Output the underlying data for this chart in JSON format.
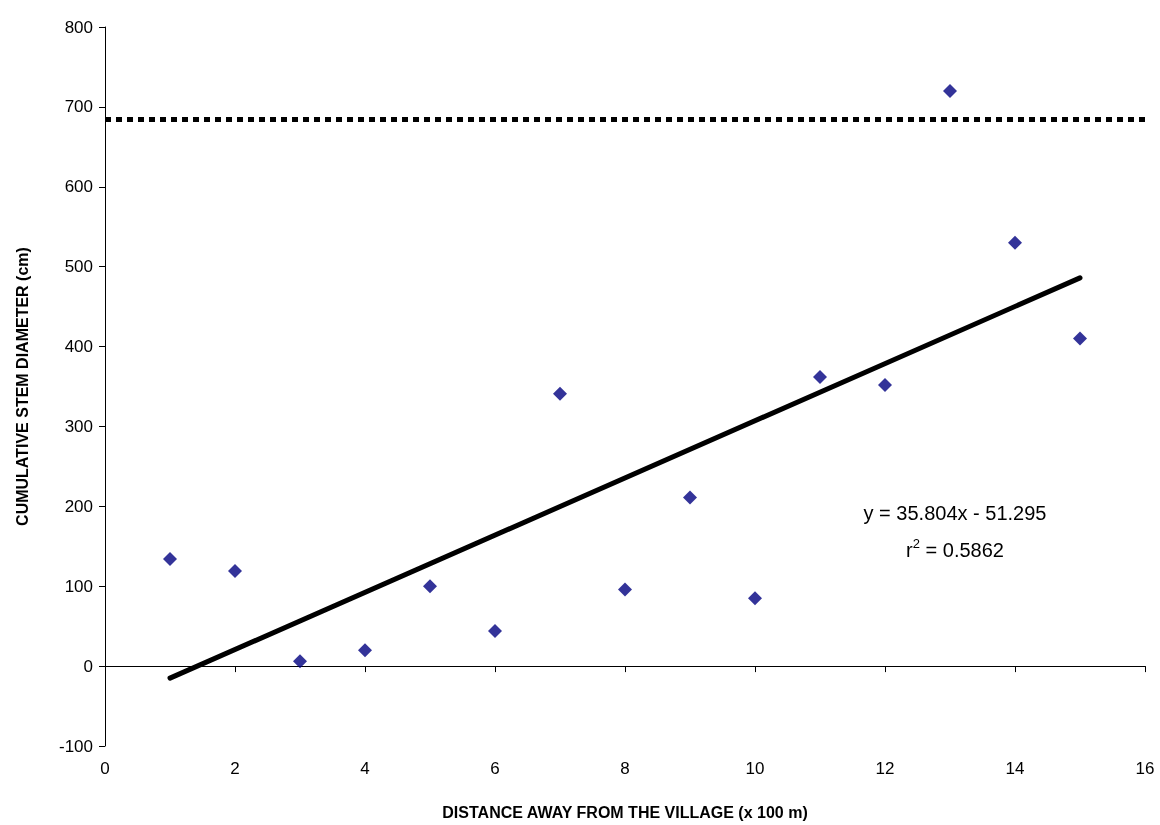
{
  "chart_data": {
    "type": "scatter",
    "xlabel": "DISTANCE AWAY FROM THE VILLAGE (x 100 m)",
    "ylabel": "CUMULATIVE STEM DIAMETER (cm)",
    "x": [
      1,
      2,
      3,
      4,
      5,
      6,
      7,
      8,
      9,
      10,
      11,
      12,
      13,
      14,
      15
    ],
    "series": [
      {
        "color": "#000080",
        "marker": "diamond",
        "values": [
          134,
          119,
          6,
          20,
          100,
          44,
          341,
          96,
          211,
          85,
          362,
          352,
          720,
          530,
          410
        ]
      },
      {
        "type": "line",
        "color": "#000000",
        "marker": "none",
        "line_style": "solid",
        "x": [
          1,
          15
        ],
        "values": [
          -15,
          486
        ]
      }
    ],
    "xlim": [
      0,
      16
    ],
    "xticks": [
      0,
      2,
      4,
      6,
      8,
      10,
      12,
      14,
      16
    ],
    "ylim": [
      -100,
      800
    ],
    "yticks": [
      -100,
      0,
      100,
      200,
      300,
      400,
      500,
      600,
      700,
      800
    ],
    "ref_lines": [
      {
        "axis": "y",
        "value": 685,
        "color": "#000000",
        "line_style": "dotted"
      }
    ],
    "annotations": [
      "y = 35.804x - 51.295",
      "r$^{2}$ = 0.5862"
    ]
  }
}
